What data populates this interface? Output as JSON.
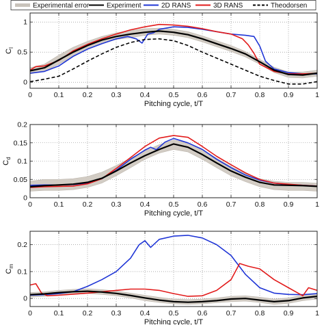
{
  "legend": {
    "placement": "top",
    "entries": [
      {
        "label": "Experimental error",
        "kind": "band",
        "color": "#c9c3bb"
      },
      {
        "label": "Experiment",
        "kind": "line",
        "color": "#000000",
        "dash": "solid"
      },
      {
        "label": "2D RANS",
        "kind": "line",
        "color": "#1f35d6",
        "dash": "solid"
      },
      {
        "label": "3D RANS",
        "kind": "line",
        "color": "#e21b1b",
        "dash": "solid"
      },
      {
        "label": "Theodorsen",
        "kind": "line",
        "color": "#000000",
        "dash": "dashed"
      }
    ]
  },
  "chart_data": [
    {
      "type": "line",
      "ylabel": "C",
      "ylabel_sub": "l",
      "xlabel": "Pitching cycle, t/T",
      "xlim": [
        0,
        1
      ],
      "ylim": [
        -0.1,
        1.15
      ],
      "xticks": [
        "0",
        "0.1",
        "0.2",
        "0.3",
        "0.4",
        "0.5",
        "0.6",
        "0.7",
        "0.8",
        "0.9",
        "1"
      ],
      "yticks": [
        "0",
        "0.5",
        "1"
      ],
      "grid": true,
      "x": [
        0,
        0.05,
        0.1,
        0.15,
        0.2,
        0.25,
        0.3,
        0.35,
        0.4,
        0.45,
        0.5,
        0.55,
        0.6,
        0.65,
        0.7,
        0.75,
        0.8,
        0.85,
        0.9,
        0.95,
        1.0
      ],
      "band": {
        "name": "Experimental error",
        "lower": [
          0.14,
          0.18,
          0.3,
          0.43,
          0.55,
          0.64,
          0.71,
          0.74,
          0.78,
          0.8,
          0.78,
          0.74,
          0.67,
          0.59,
          0.51,
          0.42,
          0.3,
          0.16,
          0.08,
          0.07,
          0.1
        ],
        "upper": [
          0.24,
          0.3,
          0.45,
          0.58,
          0.68,
          0.76,
          0.82,
          0.86,
          0.89,
          0.9,
          0.88,
          0.84,
          0.77,
          0.69,
          0.61,
          0.51,
          0.38,
          0.25,
          0.17,
          0.17,
          0.2
        ]
      },
      "series": [
        {
          "name": "Experiment",
          "color": "#000000",
          "dash": "solid",
          "values": [
            0.19,
            0.24,
            0.37,
            0.5,
            0.61,
            0.7,
            0.76,
            0.8,
            0.83,
            0.85,
            0.83,
            0.79,
            0.72,
            0.64,
            0.56,
            0.47,
            0.34,
            0.2,
            0.13,
            0.12,
            0.15
          ]
        },
        {
          "name": "2D RANS",
          "color": "#1f35d6",
          "dash": "solid",
          "x": [
            0,
            0.05,
            0.1,
            0.15,
            0.2,
            0.25,
            0.3,
            0.34,
            0.37,
            0.39,
            0.41,
            0.43,
            0.45,
            0.5,
            0.55,
            0.6,
            0.65,
            0.7,
            0.75,
            0.78,
            0.8,
            0.82,
            0.85,
            0.9,
            0.95,
            1.0
          ],
          "values": [
            0.15,
            0.18,
            0.27,
            0.43,
            0.55,
            0.64,
            0.72,
            0.76,
            0.72,
            0.65,
            0.8,
            0.82,
            0.88,
            0.92,
            0.91,
            0.88,
            0.84,
            0.8,
            0.78,
            0.76,
            0.6,
            0.35,
            0.22,
            0.16,
            0.14,
            0.14
          ]
        },
        {
          "name": "3D RANS",
          "color": "#e21b1b",
          "dash": "solid",
          "x": [
            0,
            0.02,
            0.05,
            0.1,
            0.15,
            0.2,
            0.25,
            0.3,
            0.35,
            0.4,
            0.45,
            0.5,
            0.55,
            0.6,
            0.65,
            0.7,
            0.72,
            0.74,
            0.76,
            0.78,
            0.8,
            0.85,
            0.9,
            0.95,
            1.0
          ],
          "values": [
            0.2,
            0.26,
            0.27,
            0.36,
            0.52,
            0.63,
            0.72,
            0.8,
            0.87,
            0.92,
            0.96,
            0.95,
            0.93,
            0.89,
            0.84,
            0.8,
            0.76,
            0.72,
            0.62,
            0.48,
            0.3,
            0.18,
            0.14,
            0.14,
            0.15
          ]
        },
        {
          "name": "Theodorsen",
          "color": "#000000",
          "dash": "dashed",
          "values": [
            0.01,
            0.05,
            0.1,
            0.22,
            0.35,
            0.47,
            0.58,
            0.66,
            0.71,
            0.72,
            0.69,
            0.61,
            0.5,
            0.4,
            0.3,
            0.2,
            0.1,
            0.03,
            -0.03,
            -0.03,
            0.01
          ]
        }
      ]
    },
    {
      "type": "line",
      "ylabel": "C",
      "ylabel_sub": "d",
      "xlabel": "Pitching cycle, t/T",
      "xlim": [
        0,
        1
      ],
      "ylim": [
        0,
        0.2
      ],
      "xticks": [
        "0",
        "0.1",
        "0.2",
        "0.3",
        "0.4",
        "0.5",
        "0.6",
        "0.7",
        "0.8",
        "0.9",
        "1"
      ],
      "yticks": [
        "0",
        "0.05",
        "0.1",
        "0.15",
        "0.2"
      ],
      "grid": true,
      "x": [
        0,
        0.05,
        0.1,
        0.15,
        0.2,
        0.25,
        0.3,
        0.35,
        0.4,
        0.45,
        0.5,
        0.55,
        0.6,
        0.65,
        0.7,
        0.75,
        0.8,
        0.85,
        0.9,
        0.95,
        1.0
      ],
      "band": {
        "name": "Experimental error",
        "lower": [
          0.018,
          0.02,
          0.02,
          0.022,
          0.028,
          0.04,
          0.06,
          0.082,
          0.105,
          0.122,
          0.132,
          0.125,
          0.105,
          0.082,
          0.06,
          0.044,
          0.03,
          0.022,
          0.02,
          0.02,
          0.018
        ],
        "upper": [
          0.045,
          0.05,
          0.05,
          0.052,
          0.058,
          0.07,
          0.088,
          0.108,
          0.128,
          0.145,
          0.158,
          0.15,
          0.132,
          0.108,
          0.085,
          0.066,
          0.052,
          0.045,
          0.042,
          0.042,
          0.04
        ]
      },
      "series": [
        {
          "name": "Experiment",
          "color": "#000000",
          "dash": "solid",
          "values": [
            0.03,
            0.033,
            0.035,
            0.037,
            0.042,
            0.053,
            0.073,
            0.095,
            0.115,
            0.132,
            0.147,
            0.138,
            0.118,
            0.095,
            0.073,
            0.056,
            0.042,
            0.035,
            0.034,
            0.033,
            0.031
          ]
        },
        {
          "name": "2D RANS",
          "color": "#1f35d6",
          "dash": "solid",
          "x": [
            0,
            0.05,
            0.1,
            0.15,
            0.2,
            0.25,
            0.3,
            0.35,
            0.4,
            0.42,
            0.44,
            0.47,
            0.5,
            0.55,
            0.6,
            0.65,
            0.7,
            0.75,
            0.8,
            0.85,
            0.9,
            0.95,
            1.0
          ],
          "values": [
            0.034,
            0.035,
            0.035,
            0.036,
            0.04,
            0.052,
            0.075,
            0.105,
            0.13,
            0.138,
            0.131,
            0.152,
            0.162,
            0.15,
            0.132,
            0.105,
            0.082,
            0.062,
            0.048,
            0.04,
            0.036,
            0.034,
            0.032
          ]
        },
        {
          "name": "3D RANS",
          "color": "#e21b1b",
          "dash": "solid",
          "values": [
            0.028,
            0.03,
            0.031,
            0.032,
            0.038,
            0.052,
            0.08,
            0.11,
            0.14,
            0.163,
            0.17,
            0.165,
            0.14,
            0.113,
            0.09,
            0.068,
            0.05,
            0.04,
            0.037,
            0.034,
            0.032
          ]
        }
      ]
    },
    {
      "type": "line",
      "ylabel": "C",
      "ylabel_sub": "m",
      "xlabel": "Pitching cycle, t/T",
      "xlim": [
        0,
        1
      ],
      "ylim": [
        -0.03,
        0.25
      ],
      "xticks": [
        "0",
        "0.1",
        "0.2",
        "0.3",
        "0.4",
        "0.5",
        "0.6",
        "0.7",
        "0.8",
        "0.9",
        "1"
      ],
      "yticks": [
        "0",
        "0.1",
        "0.2"
      ],
      "grid": true,
      "x": [
        0,
        0.05,
        0.1,
        0.15,
        0.2,
        0.25,
        0.3,
        0.35,
        0.4,
        0.45,
        0.5,
        0.55,
        0.6,
        0.65,
        0.7,
        0.75,
        0.8,
        0.85,
        0.9,
        0.95,
        1.0
      ],
      "band": {
        "name": "Experimental error",
        "lower": [
          0.005,
          0.008,
          0.012,
          0.015,
          0.018,
          0.015,
          0.01,
          0.002,
          -0.008,
          -0.015,
          -0.02,
          -0.022,
          -0.02,
          -0.016,
          -0.012,
          -0.01,
          -0.015,
          -0.022,
          -0.018,
          -0.008,
          -0.002
        ],
        "upper": [
          0.022,
          0.025,
          0.03,
          0.034,
          0.036,
          0.033,
          0.028,
          0.02,
          0.012,
          0.004,
          -0.002,
          -0.004,
          -0.002,
          0.002,
          0.008,
          0.01,
          0.005,
          -0.002,
          0.002,
          0.012,
          0.018
        ]
      },
      "series": [
        {
          "name": "Experiment",
          "color": "#000000",
          "dash": "solid",
          "values": [
            0.014,
            0.017,
            0.022,
            0.025,
            0.027,
            0.024,
            0.019,
            0.011,
            0.002,
            -0.006,
            -0.012,
            -0.014,
            -0.012,
            -0.008,
            -0.002,
            0.0,
            -0.006,
            -0.012,
            -0.008,
            0.002,
            0.008
          ]
        },
        {
          "name": "2D RANS",
          "color": "#1f35d6",
          "dash": "solid",
          "x": [
            0,
            0.05,
            0.1,
            0.15,
            0.2,
            0.25,
            0.3,
            0.35,
            0.38,
            0.4,
            0.42,
            0.45,
            0.5,
            0.55,
            0.6,
            0.65,
            0.7,
            0.75,
            0.8,
            0.85,
            0.9,
            0.95,
            1.0
          ],
          "values": [
            0.012,
            0.014,
            0.018,
            0.025,
            0.045,
            0.07,
            0.1,
            0.15,
            0.2,
            0.215,
            0.19,
            0.22,
            0.232,
            0.235,
            0.225,
            0.2,
            0.16,
            0.09,
            0.04,
            0.02,
            0.015,
            0.014,
            0.018
          ]
        },
        {
          "name": "3D RANS",
          "color": "#e21b1b",
          "dash": "solid",
          "x": [
            0,
            0.02,
            0.04,
            0.06,
            0.1,
            0.15,
            0.2,
            0.25,
            0.3,
            0.35,
            0.4,
            0.45,
            0.5,
            0.55,
            0.6,
            0.65,
            0.7,
            0.73,
            0.76,
            0.8,
            0.85,
            0.9,
            0.95,
            0.97,
            1.0
          ],
          "values": [
            0.05,
            0.055,
            0.02,
            0.01,
            0.012,
            0.016,
            0.02,
            0.025,
            0.03,
            0.035,
            0.035,
            0.03,
            0.018,
            0.008,
            0.01,
            0.03,
            0.07,
            0.13,
            0.12,
            0.11,
            0.07,
            0.04,
            0.01,
            0.04,
            0.03
          ]
        }
      ]
    }
  ]
}
